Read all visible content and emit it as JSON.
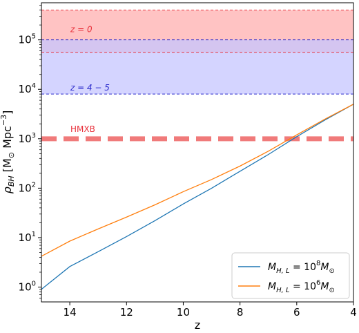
{
  "chart_data": {
    "type": "line",
    "xlabel": "z",
    "ylabel": {
      "prefix": "ρ",
      "sub": "BH",
      "unit_open": " [M",
      "unit_sun": "⊙",
      "unit_rest": " Mpc",
      "unit_exp": "−3",
      "unit_close": "]"
    },
    "xlim": [
      15,
      4
    ],
    "ylim_exponent": [
      -0.3,
      5.75
    ],
    "y_scale": "log",
    "grid": false,
    "x_ticks": [
      {
        "value": 14,
        "label": "14"
      },
      {
        "value": 12,
        "label": "12"
      },
      {
        "value": 10,
        "label": "10"
      },
      {
        "value": 8,
        "label": "8"
      },
      {
        "value": 6,
        "label": "6"
      },
      {
        "value": 4,
        "label": "4"
      }
    ],
    "y_ticks": [
      {
        "exp": 0,
        "base": "10",
        "sup": "0"
      },
      {
        "exp": 1,
        "base": "10",
        "sup": "1"
      },
      {
        "exp": 2,
        "base": "10",
        "sup": "2"
      },
      {
        "exp": 3,
        "base": "10",
        "sup": "3"
      },
      {
        "exp": 4,
        "base": "10",
        "sup": "4"
      },
      {
        "exp": 5,
        "base": "10",
        "sup": "5"
      }
    ],
    "bands": [
      {
        "label": "z = 0",
        "y_low": 56000,
        "y_high": 400000,
        "fill": "#ffc3c3",
        "edge": "#e8323c",
        "text_color": "#e8323c"
      },
      {
        "label": "z = 4 − 5",
        "y_low": 8000,
        "y_high": 100000,
        "fill": "#c6c6ff",
        "edge": "#2b2bcc",
        "text_color": "#2b2bcc"
      }
    ],
    "reference_line": {
      "label": "HMXB",
      "y": 1000,
      "color": "#f07a7a"
    },
    "series": [
      {
        "name": {
          "pre": "M",
          "sub": "H, L",
          "mid": " = 10",
          "exp": "8",
          "post": "M",
          "post_sub": "⊙"
        },
        "color": "#1f77b4",
        "x": [
          15,
          14,
          13,
          12,
          11,
          10,
          9,
          8,
          7,
          6,
          5,
          4
        ],
        "y": [
          0.9,
          2.6,
          5.2,
          10.5,
          22,
          48,
          100,
          220,
          480,
          1100,
          2400,
          5000
        ]
      },
      {
        "name": {
          "pre": "M",
          "sub": "H, L",
          "mid": " = 10",
          "exp": "6",
          "post": "M",
          "post_sub": "⊙"
        },
        "color": "#ff7f0e",
        "x": [
          15,
          14,
          13,
          12,
          11,
          10,
          9,
          8,
          7,
          6,
          5,
          4
        ],
        "y": [
          4.2,
          8.5,
          15,
          26,
          46,
          85,
          150,
          280,
          560,
          1200,
          2500,
          5000
        ]
      }
    ],
    "legend_position": "lower-right"
  }
}
